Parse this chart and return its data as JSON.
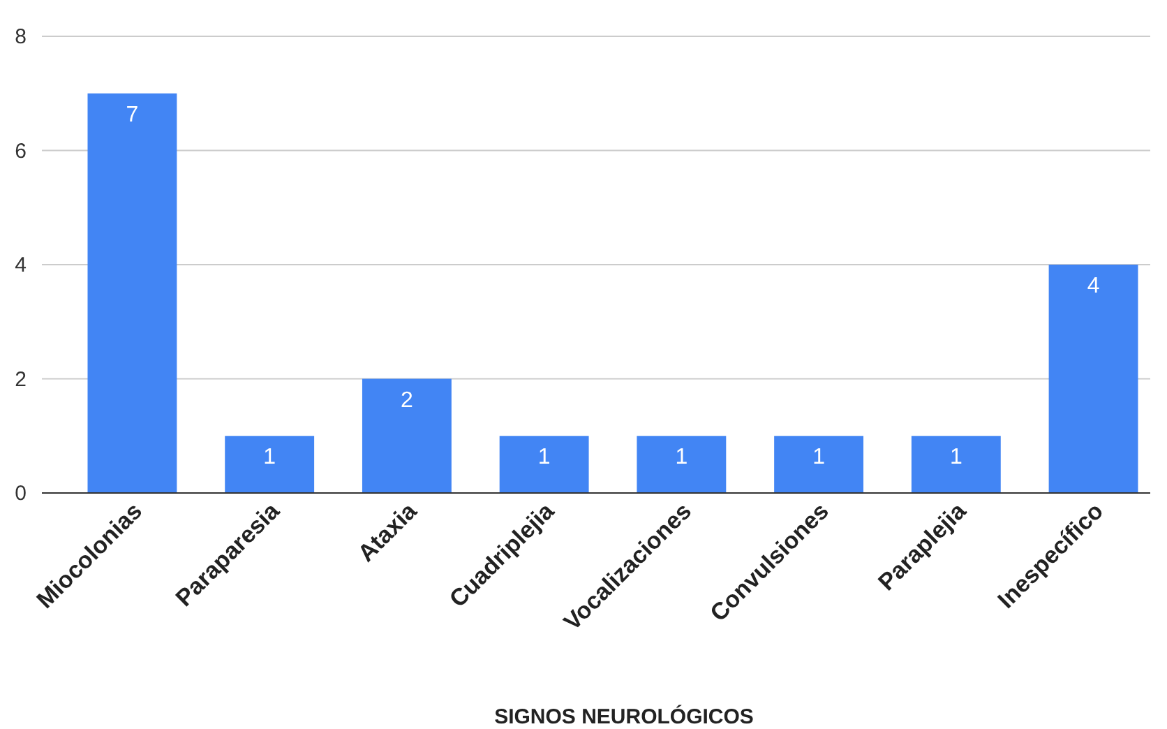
{
  "chart_data": {
    "type": "bar",
    "xlabel": "SIGNOS NEUROLÓGICOS",
    "categories": [
      "Miocolonias",
      "Paraparesia",
      "Ataxia",
      "Cuadriplejia",
      "Vocalizaciones",
      "Convulsiones",
      "Paraplejia",
      "Inespecífico"
    ],
    "values": [
      7,
      1,
      2,
      1,
      1,
      1,
      1,
      4
    ],
    "color": "#4285f4",
    "ylim": [
      0,
      8
    ],
    "yticks": [
      0,
      2,
      4,
      6,
      8
    ],
    "grid": "y",
    "data_labels": true
  }
}
